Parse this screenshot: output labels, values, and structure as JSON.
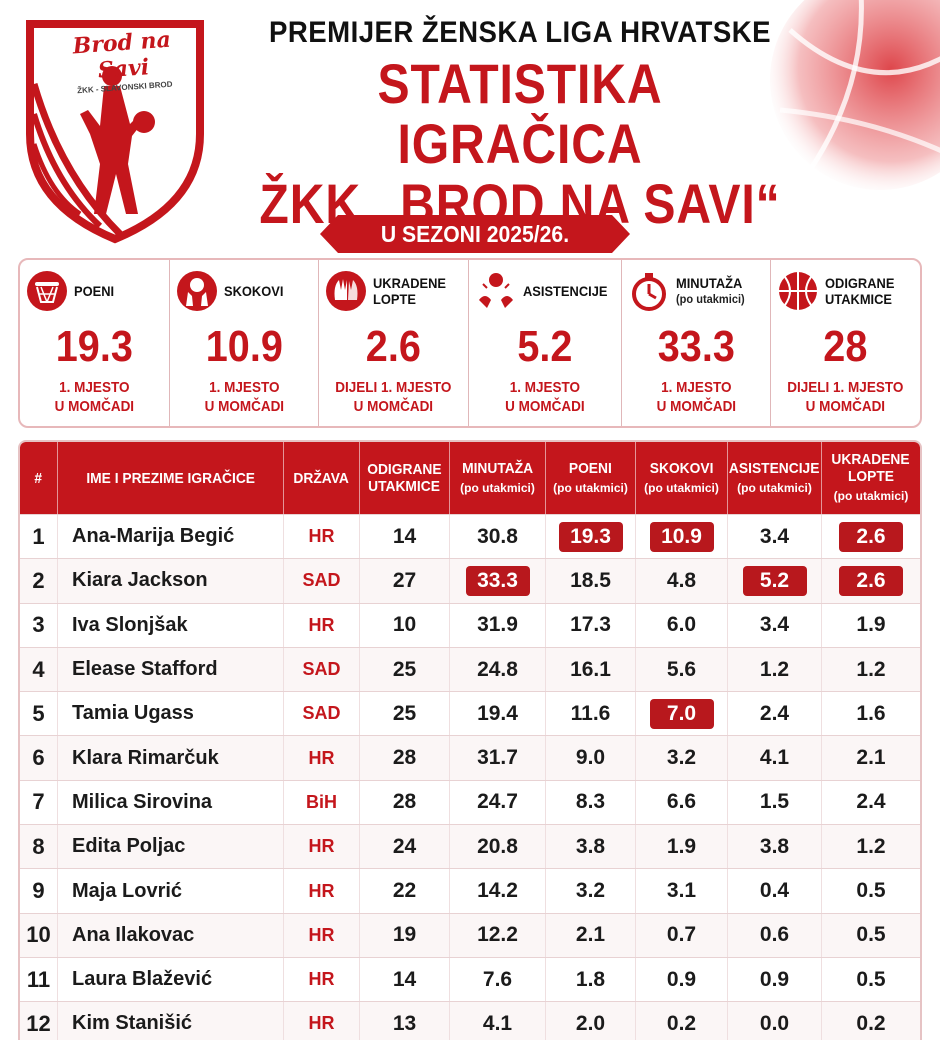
{
  "logo": {
    "text": "Brod na Savi",
    "subtext": "ŽKK - SLAVONSKI BROD",
    "color": "#c4161c"
  },
  "header": {
    "league": "PREMIJER ŽENSKA LIGA HRVATSKE",
    "title_line1": "STATISTIKA IGRAČICA",
    "title_line2": "ŽKK „BROD NA SAVI“",
    "season": "U SEZONI 2025/26."
  },
  "summary": [
    {
      "icon": "basket-hoop-icon",
      "label": "POENI",
      "sub": "",
      "value": "19.3",
      "rank1": "1. MJESTO",
      "rank2": "U MOMČADI"
    },
    {
      "icon": "rebound-hands-icon",
      "label": "SKOKOVI",
      "sub": "",
      "value": "10.9",
      "rank1": "1. MJESTO",
      "rank2": "U MOMČADI"
    },
    {
      "icon": "steal-hands-icon",
      "label": "UKRADENE",
      "label2": "LOPTE",
      "sub": "",
      "value": "2.6",
      "rank1": "DIJELI 1. MJESTO",
      "rank2": "U MOMČADI"
    },
    {
      "icon": "assist-hands-icon",
      "label": "ASISTENCIJE",
      "sub": "",
      "value": "5.2",
      "rank1": "1. MJESTO",
      "rank2": "U MOMČADI"
    },
    {
      "icon": "stopwatch-icon",
      "label": "MINUTAŽA",
      "sub": "(po utakmici)",
      "value": "33.3",
      "rank1": "1. MJESTO",
      "rank2": "U MOMČADI"
    },
    {
      "icon": "basketball-icon",
      "label": "ODIGRANE",
      "label2": "UTAKMICE",
      "sub": "",
      "value": "28",
      "rank1": "DIJELI 1. MJESTO",
      "rank2": "U MOMČADI"
    }
  ],
  "table": {
    "headers": [
      {
        "label": "#",
        "sub": ""
      },
      {
        "label": "IME I PREZIME IGRAČICE",
        "sub": ""
      },
      {
        "label": "DRŽAVA",
        "sub": ""
      },
      {
        "label": "ODIGRANE",
        "label2": "UTAKMICE",
        "sub": ""
      },
      {
        "label": "MINUTAŽA",
        "sub": "(po utakmici)"
      },
      {
        "label": "POENI",
        "sub": "(po utakmici)"
      },
      {
        "label": "SKOKOVI",
        "sub": "(po utakmici)"
      },
      {
        "label": "ASISTENCIJE",
        "sub": "(po utakmici)"
      },
      {
        "label": "UKRADENE",
        "label2": "LOPTE",
        "sub": "(po utakmici)"
      }
    ],
    "rows": [
      {
        "rank": "1",
        "name": "Ana-Marija Begić",
        "country": "HR",
        "games": "14",
        "minutes": "30.8",
        "points": "19.3",
        "rebounds": "10.9",
        "assists": "3.4",
        "steals": "2.6",
        "hl": [
          "points",
          "rebounds",
          "steals"
        ]
      },
      {
        "rank": "2",
        "name": "Kiara Jackson",
        "country": "SAD",
        "games": "27",
        "minutes": "33.3",
        "points": "18.5",
        "rebounds": "4.8",
        "assists": "5.2",
        "steals": "2.6",
        "hl": [
          "minutes",
          "assists",
          "steals"
        ]
      },
      {
        "rank": "3",
        "name": "Iva Slonjšak",
        "country": "HR",
        "games": "10",
        "minutes": "31.9",
        "points": "17.3",
        "rebounds": "6.0",
        "assists": "3.4",
        "steals": "1.9",
        "hl": []
      },
      {
        "rank": "4",
        "name": "Elease Stafford",
        "country": "SAD",
        "games": "25",
        "minutes": "24.8",
        "points": "16.1",
        "rebounds": "5.6",
        "assists": "1.2",
        "steals": "1.2",
        "hl": []
      },
      {
        "rank": "5",
        "name": "Tamia Ugass",
        "country": "SAD",
        "games": "25",
        "minutes": "19.4",
        "points": "11.6",
        "rebounds": "7.0",
        "assists": "2.4",
        "steals": "1.6",
        "hl": [
          "rebounds"
        ]
      },
      {
        "rank": "6",
        "name": "Klara Rimarčuk",
        "country": "HR",
        "games": "28",
        "minutes": "31.7",
        "points": "9.0",
        "rebounds": "3.2",
        "assists": "4.1",
        "steals": "2.1",
        "hl": []
      },
      {
        "rank": "7",
        "name": "Milica Sirovina",
        "country": "BiH",
        "games": "28",
        "minutes": "24.7",
        "points": "8.3",
        "rebounds": "6.6",
        "assists": "1.5",
        "steals": "2.4",
        "hl": []
      },
      {
        "rank": "8",
        "name": "Edita Poljac",
        "country": "HR",
        "games": "24",
        "minutes": "20.8",
        "points": "3.8",
        "rebounds": "1.9",
        "assists": "3.8",
        "steals": "1.2",
        "hl": []
      },
      {
        "rank": "9",
        "name": "Maja Lovrić",
        "country": "HR",
        "games": "22",
        "minutes": "14.2",
        "points": "3.2",
        "rebounds": "3.1",
        "assists": "0.4",
        "steals": "0.5",
        "hl": []
      },
      {
        "rank": "10",
        "name": "Ana Ilakovac",
        "country": "HR",
        "games": "19",
        "minutes": "12.2",
        "points": "2.1",
        "rebounds": "0.7",
        "assists": "0.6",
        "steals": "0.5",
        "hl": []
      },
      {
        "rank": "11",
        "name": "Laura Blažević",
        "country": "HR",
        "games": "14",
        "minutes": "7.6",
        "points": "1.8",
        "rebounds": "0.9",
        "assists": "0.9",
        "steals": "0.5",
        "hl": []
      },
      {
        "rank": "12",
        "name": "Kim Stanišić",
        "country": "HR",
        "games": "13",
        "minutes": "4.1",
        "points": "2.0",
        "rebounds": "0.2",
        "assists": "0.0",
        "steals": "0.2",
        "hl": []
      }
    ]
  }
}
